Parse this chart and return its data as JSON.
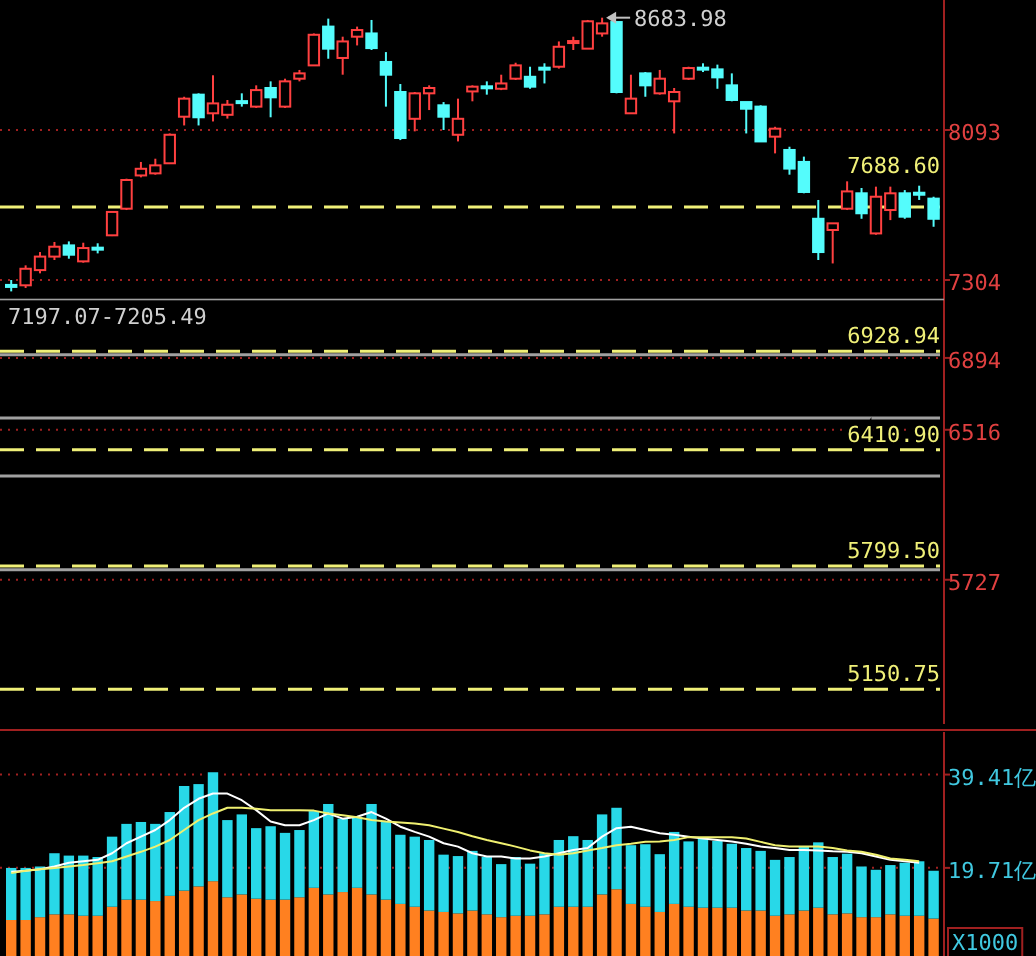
{
  "chart_data": [
    {
      "type": "candlestick",
      "categories": [
        null,
        null,
        null,
        null,
        null,
        null,
        null,
        null,
        null,
        null,
        null,
        null,
        null,
        null,
        null,
        null,
        null,
        null,
        null,
        null,
        null,
        null,
        null,
        null,
        null,
        null,
        null,
        null,
        null,
        null,
        null,
        null,
        null,
        null,
        null,
        null,
        null,
        null,
        null,
        null,
        null,
        null,
        null,
        null,
        null,
        null,
        null,
        null,
        null,
        null,
        null,
        null,
        null,
        null,
        null,
        null,
        null,
        null,
        null,
        null,
        null,
        null,
        null,
        null,
        null
      ],
      "ohlc": [
        [
          7278,
          7304,
          7244,
          7274
        ],
        [
          7276,
          7381,
          7262,
          7363
        ],
        [
          7356,
          7451,
          7339,
          7427
        ],
        [
          7427,
          7504,
          7409,
          7479
        ],
        [
          7486,
          7507,
          7416,
          7437
        ],
        [
          7402,
          7500,
          7395,
          7472
        ],
        [
          7474,
          7497,
          7444,
          7470
        ],
        [
          7539,
          7665,
          7535,
          7662
        ],
        [
          7679,
          7837,
          7672,
          7830
        ],
        [
          7854,
          7925,
          7844,
          7889
        ],
        [
          7865,
          7942,
          7858,
          7907
        ],
        [
          7918,
          8075,
          7914,
          8068
        ],
        [
          8163,
          8268,
          8117,
          8258
        ],
        [
          8279,
          8286,
          8117,
          8160
        ],
        [
          8181,
          8381,
          8138,
          8233
        ],
        [
          8173,
          8251,
          8153,
          8226
        ],
        [
          8245,
          8286,
          8216,
          8242
        ],
        [
          8216,
          8328,
          8209,
          8303
        ],
        [
          8314,
          8349,
          8160,
          8265
        ],
        [
          8216,
          8363,
          8209,
          8349
        ],
        [
          8363,
          8409,
          8349,
          8391
        ],
        [
          8433,
          8601,
          8433,
          8594
        ],
        [
          8637,
          8679,
          8468,
          8521
        ],
        [
          8472,
          8584,
          8384,
          8559
        ],
        [
          8584,
          8637,
          8538,
          8619
        ],
        [
          8601,
          8672,
          8514,
          8524
        ],
        [
          8451,
          8503,
          8216,
          8384
        ],
        [
          8293,
          8335,
          8040,
          8051
        ],
        [
          8152,
          8293,
          8086,
          8286
        ],
        [
          8286,
          8328,
          8198,
          8314
        ],
        [
          8223,
          8240,
          8093,
          8163
        ],
        [
          8068,
          8258,
          8033,
          8152
        ],
        [
          8296,
          8328,
          8244,
          8321
        ],
        [
          8323,
          8349,
          8279,
          8319
        ],
        [
          8310,
          8384,
          8303,
          8338
        ],
        [
          8363,
          8447,
          8356,
          8433
        ],
        [
          8373,
          8426,
          8310,
          8321
        ],
        [
          8421,
          8444,
          8338,
          8417
        ],
        [
          8426,
          8559,
          8416,
          8531
        ],
        [
          8557,
          8584,
          8514,
          8561
        ],
        [
          8521,
          8672,
          8521,
          8665
        ],
        [
          8601,
          8683.98,
          8584,
          8654
        ],
        [
          8661,
          8661,
          8286,
          8293
        ],
        [
          8181,
          8384,
          8181,
          8258
        ],
        [
          8391,
          8398,
          8268,
          8328
        ],
        [
          8286,
          8409,
          8279,
          8363
        ],
        [
          8244,
          8314,
          8075,
          8293
        ],
        [
          8363,
          8426,
          8356,
          8419
        ],
        [
          8421,
          8444,
          8398,
          8417
        ],
        [
          8412,
          8437,
          8310,
          8370
        ],
        [
          8328,
          8391,
          8244,
          8251
        ],
        [
          8240,
          8240,
          8075,
          8205
        ],
        [
          8216,
          8223,
          8033,
          8033
        ],
        [
          8058,
          8110,
          7970,
          8100
        ],
        [
          7988,
          8005,
          7858,
          7890
        ],
        [
          7925,
          7953,
          7760,
          7767
        ],
        [
          7626,
          7725,
          7409,
          7451
        ],
        [
          7567,
          7602,
          7391,
          7602
        ],
        [
          7679,
          7823,
          7672,
          7770
        ],
        [
          7760,
          7788,
          7626,
          7655
        ],
        [
          7549,
          7795,
          7542,
          7742
        ],
        [
          7672,
          7795,
          7619,
          7760
        ],
        [
          7760,
          7777,
          7626,
          7637
        ],
        [
          7763,
          7800,
          7725,
          7760
        ],
        [
          7732,
          7742,
          7584,
          7626
        ]
      ],
      "ylim": [
        4968,
        8777
      ],
      "yticks": [
        8093,
        7304,
        6894,
        6516,
        5727
      ],
      "grid": "y",
      "tick_labels": "y",
      "ref_lines": [
        {
          "axis": "y",
          "value": 7688.6,
          "label": "7688.60",
          "color": "#f0f078",
          "line_style": "dashed"
        },
        {
          "axis": "y",
          "value": 6928.94,
          "label": "6928.94",
          "color": "#f0f078",
          "line_style": "dashed"
        },
        {
          "axis": "y",
          "value": 6410.9,
          "label": "6410.90",
          "color": "#f0f078",
          "line_style": "dashed"
        },
        {
          "axis": "y",
          "value": 5799.5,
          "label": "5799.50",
          "color": "#f0f078",
          "line_style": "dashed"
        },
        {
          "axis": "y",
          "value": 5150.75,
          "label": "5150.75",
          "color": "#f0f078",
          "line_style": "dashed"
        },
        {
          "axis": "y",
          "value": 6910,
          "color": "#a0a0a0",
          "line_style": "solid"
        },
        {
          "axis": "y",
          "value": 6578,
          "color": "#a0a0a0",
          "line_style": "solid"
        },
        {
          "axis": "y",
          "value": 6273,
          "color": "#a0a0a0",
          "line_style": "solid"
        },
        {
          "axis": "y",
          "value": 5779,
          "color": "#a0a0a0",
          "line_style": "solid"
        }
      ],
      "bands": [
        {
          "axis": "y",
          "from": 7197.07,
          "to": 7205.49,
          "label": "7197.07-7205.49",
          "color": "#a0a0a0"
        }
      ],
      "annotations": [
        "8683.98"
      ]
    },
    {
      "type": "bar",
      "stacked": true,
      "categories": [
        null,
        null,
        null,
        null,
        null,
        null,
        null,
        null,
        null,
        null,
        null,
        null,
        null,
        null,
        null,
        null,
        null,
        null,
        null,
        null,
        null,
        null,
        null,
        null,
        null,
        null,
        null,
        null,
        null,
        null,
        null,
        null,
        null,
        null,
        null,
        null,
        null,
        null,
        null,
        null,
        null,
        null,
        null,
        null,
        null,
        null,
        null,
        null,
        null,
        null,
        null,
        null,
        null,
        null,
        null,
        null,
        null,
        null,
        null,
        null,
        null,
        null,
        null,
        null,
        null
      ],
      "ylim": [
        1.1,
        48.4
      ],
      "yticks": [
        {
          "value": 39.41,
          "label": "39.41亿"
        },
        {
          "value": 19.71,
          "label": "19.71亿"
        }
      ],
      "grid": "y",
      "tick_labels": "y",
      "series": [
        {
          "type": "bar",
          "color": "#ff8020",
          "values": [
            8.7,
            8.7,
            9.3,
            9.9,
            9.9,
            9.6,
            9.6,
            11.5,
            13.0,
            13.0,
            12.7,
            13.8,
            14.9,
            15.8,
            16.9,
            13.5,
            14.1,
            13.2,
            13.0,
            13.0,
            13.5,
            15.5,
            14.1,
            14.6,
            15.5,
            14.1,
            13.0,
            12.1,
            11.5,
            10.7,
            10.4,
            10.1,
            10.7,
            9.9,
            9.3,
            9.6,
            9.6,
            9.9,
            11.5,
            11.5,
            11.5,
            14.1,
            15.2,
            12.1,
            11.5,
            10.4,
            12.1,
            11.5,
            11.3,
            11.3,
            11.3,
            10.7,
            10.7,
            9.6,
            9.9,
            10.7,
            11.3,
            9.9,
            10.1,
            9.3,
            9.3,
            9.9,
            9.6,
            9.6,
            9.0
          ]
        },
        {
          "type": "bar",
          "color": "#28d8e8",
          "values": [
            11.0,
            11.0,
            10.7,
            12.9,
            12.4,
            12.7,
            12.4,
            14.8,
            16.0,
            16.4,
            16.3,
            17.7,
            22.1,
            21.6,
            23.0,
            16.3,
            16.9,
            14.9,
            15.5,
            14.1,
            14.2,
            16.2,
            19.1,
            15.5,
            15.0,
            19.1,
            16.6,
            14.6,
            14.8,
            14.9,
            12.1,
            12.1,
            12.6,
            12.1,
            11.2,
            12.4,
            11.0,
            12.9,
            14.1,
            14.9,
            14.1,
            16.9,
            17.2,
            12.4,
            13.2,
            12.2,
            15.2,
            13.8,
            14.9,
            14.1,
            13.5,
            13.2,
            12.6,
            11.8,
            12.1,
            13.5,
            13.8,
            12.1,
            12.6,
            10.7,
            10.0,
            10.4,
            11.2,
            11.5,
            10.1
          ]
        },
        {
          "type": "line",
          "color": "#ffffff",
          "values": [
            18.9,
            19.1,
            19.4,
            20.0,
            20.8,
            21.1,
            21.4,
            22.8,
            24.9,
            26.3,
            27.7,
            29.8,
            32.4,
            34.3,
            35.4,
            35.4,
            34.0,
            31.9,
            29.5,
            28.7,
            28.7,
            29.8,
            31.2,
            30.1,
            30.5,
            31.5,
            30.1,
            28.4,
            27.3,
            26.3,
            24.9,
            24.2,
            22.8,
            22.1,
            22.1,
            21.7,
            21.7,
            22.1,
            22.8,
            23.5,
            23.9,
            26.3,
            28.1,
            28.4,
            27.7,
            27.0,
            26.7,
            26.3,
            25.9,
            25.6,
            25.3,
            24.8,
            24.2,
            23.9,
            23.5,
            23.5,
            23.4,
            23.2,
            23.1,
            22.8,
            22.1,
            21.4,
            21.1,
            20.8,
            null
          ]
        },
        {
          "type": "line",
          "color": "#f0f070",
          "values": [
            18.6,
            19.1,
            19.4,
            19.7,
            20.0,
            20.3,
            20.7,
            21.1,
            22.1,
            23.1,
            24.2,
            25.6,
            27.7,
            29.8,
            31.2,
            32.4,
            32.4,
            32.2,
            31.9,
            31.9,
            31.9,
            31.8,
            31.2,
            30.8,
            30.4,
            29.8,
            29.5,
            29.3,
            29.1,
            28.7,
            28.0,
            27.3,
            26.4,
            25.6,
            24.9,
            24.2,
            23.4,
            22.8,
            22.5,
            22.8,
            23.4,
            23.9,
            24.5,
            24.8,
            25.2,
            25.3,
            25.6,
            26.2,
            26.2,
            26.2,
            26.2,
            25.9,
            25.2,
            24.5,
            24.2,
            24.2,
            24.2,
            23.9,
            23.4,
            23.1,
            22.5,
            21.7,
            21.4,
            21.1,
            null
          ]
        }
      ],
      "annotations": [
        "X1000"
      ]
    }
  ]
}
